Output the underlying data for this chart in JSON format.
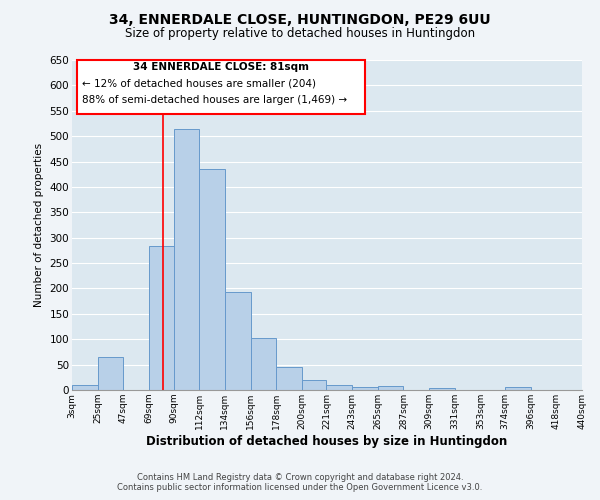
{
  "title": "34, ENNERDALE CLOSE, HUNTINGDON, PE29 6UU",
  "subtitle": "Size of property relative to detached houses in Huntingdon",
  "xlabel": "Distribution of detached houses by size in Huntingdon",
  "ylabel": "Number of detached properties",
  "bar_color": "#b8d0e8",
  "bar_edge_color": "#6699cc",
  "bg_color": "#dce8f0",
  "fig_color": "#f0f4f8",
  "grid_color": "#ffffff",
  "bin_labels": [
    "3sqm",
    "25sqm",
    "47sqm",
    "69sqm",
    "90sqm",
    "112sqm",
    "134sqm",
    "156sqm",
    "178sqm",
    "200sqm",
    "221sqm",
    "243sqm",
    "265sqm",
    "287sqm",
    "309sqm",
    "331sqm",
    "353sqm",
    "374sqm",
    "396sqm",
    "418sqm",
    "440sqm"
  ],
  "bin_edges": [
    3,
    25,
    47,
    69,
    90,
    112,
    134,
    156,
    178,
    200,
    221,
    243,
    265,
    287,
    309,
    331,
    353,
    374,
    396,
    418,
    440
  ],
  "bar_heights": [
    10,
    65,
    0,
    283,
    515,
    435,
    193,
    103,
    46,
    20,
    10,
    5,
    8,
    0,
    3,
    0,
    0,
    5,
    0,
    0
  ],
  "ylim": [
    0,
    650
  ],
  "yticks": [
    0,
    50,
    100,
    150,
    200,
    250,
    300,
    350,
    400,
    450,
    500,
    550,
    600,
    650
  ],
  "property_line_x": 81,
  "annotation_text_line1": "34 ENNERDALE CLOSE: 81sqm",
  "annotation_text_line2": "← 12% of detached houses are smaller (204)",
  "annotation_text_line3": "88% of semi-detached houses are larger (1,469) →",
  "footer_line1": "Contains HM Land Registry data © Crown copyright and database right 2024.",
  "footer_line2": "Contains public sector information licensed under the Open Government Licence v3.0."
}
